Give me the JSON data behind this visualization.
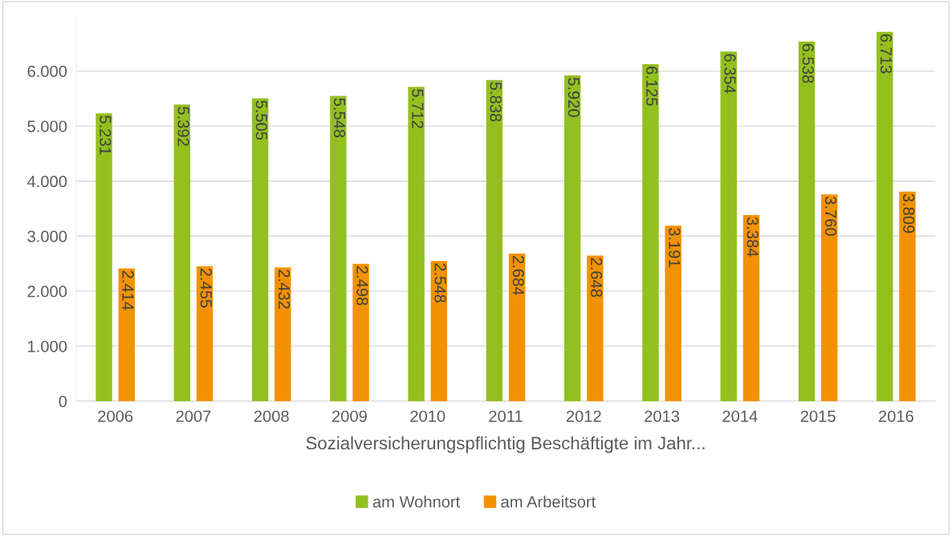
{
  "chart_data": {
    "type": "bar",
    "xlabel": "Sozialversicherungspflichtig Beschäftigte im Jahr...",
    "categories": [
      "2006",
      "2007",
      "2008",
      "2009",
      "2010",
      "2011",
      "2012",
      "2013",
      "2014",
      "2015",
      "2016"
    ],
    "series": [
      {
        "name": "am Wohnort",
        "color": "#93c01f",
        "values": [
          5231,
          5392,
          5505,
          5548,
          5712,
          5838,
          5920,
          6125,
          6354,
          6538,
          6713
        ],
        "value_labels": [
          "5.231",
          "5.392",
          "5.505",
          "5.548",
          "5.712",
          "5.838",
          "5.920",
          "6.125",
          "6.354",
          "6.538",
          "6.713"
        ]
      },
      {
        "name": "am Arbeitsort",
        "color": "#f39200",
        "values": [
          2414,
          2455,
          2432,
          2498,
          2548,
          2684,
          2648,
          3191,
          3384,
          3760,
          3809
        ],
        "value_labels": [
          "2.414",
          "2.455",
          "2.432",
          "2.498",
          "2.548",
          "2.684",
          "2.648",
          "3.191",
          "3.384",
          "3.760",
          "3.809"
        ]
      }
    ],
    "ylim": [
      0,
      7000
    ],
    "yticks": [
      0,
      {
        "value": 1000,
        "label": "1.000"
      },
      {
        "value": 2000,
        "label": "2.000"
      },
      {
        "value": 3000,
        "label": "3.000"
      },
      {
        "value": 4000,
        "label": "4.000"
      },
      {
        "value": 5000,
        "label": "5.000"
      },
      {
        "value": 6000,
        "label": "6.000"
      }
    ],
    "grid": "y",
    "legend": "bottom"
  }
}
